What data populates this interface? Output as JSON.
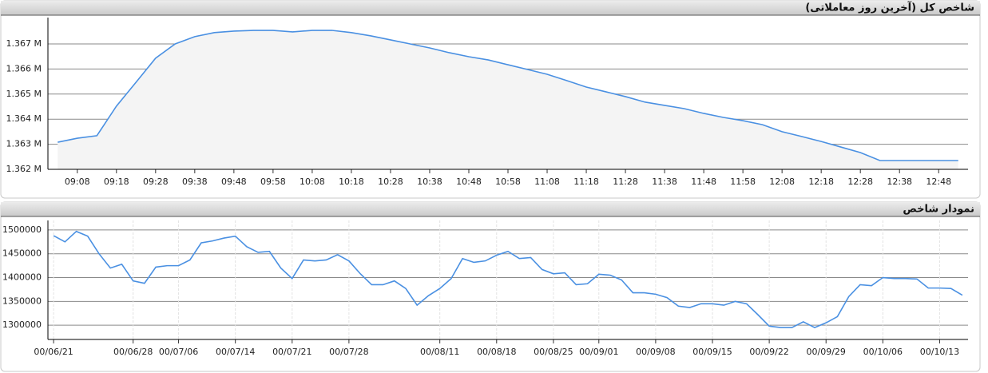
{
  "chart_data": [
    {
      "type": "line",
      "title": "شاخص کل (آخرین روز معاملاتی)",
      "color": "#4a90e2",
      "area_color": "#f4f4f4",
      "grid": true,
      "categories": [
        null,
        "09:08",
        null,
        "09:18",
        null,
        "09:28",
        null,
        "09:38",
        null,
        "09:48",
        null,
        "09:58",
        null,
        "10:08",
        null,
        "10:18",
        null,
        "10:28",
        null,
        "10:38",
        null,
        "10:48",
        null,
        "10:58",
        null,
        "11:08",
        null,
        "11:18",
        null,
        "11:28",
        null,
        "11:38",
        null,
        "11:48",
        null,
        "11:58",
        null,
        "12:08",
        null,
        "12:18",
        null,
        "12:28",
        null,
        "12:38",
        null,
        "12:48",
        null
      ],
      "values": [
        1363080,
        1363240,
        1363340,
        1364520,
        1365470,
        1366430,
        1367000,
        1367290,
        1367450,
        1367510,
        1367540,
        1367540,
        1367480,
        1367540,
        1367540,
        1367450,
        1367320,
        1367160,
        1367000,
        1366840,
        1366650,
        1366490,
        1366360,
        1366170,
        1365980,
        1365790,
        1365540,
        1365280,
        1365090,
        1364900,
        1364680,
        1364550,
        1364420,
        1364230,
        1364070,
        1363940,
        1363780,
        1363500,
        1363310,
        1363110,
        1362890,
        1362670,
        1362350,
        1362350,
        1362350,
        1362350,
        1362350
      ],
      "ylim": [
        1362000,
        1368050
      ],
      "yticks": [
        {
          "value": 1362000,
          "label": "1.362 M"
        },
        {
          "value": 1363000,
          "label": "1.363 M"
        },
        {
          "value": 1364000,
          "label": "1.364 M"
        },
        {
          "value": 1365000,
          "label": "1.365 M"
        },
        {
          "value": 1366000,
          "label": "1.366 M"
        },
        {
          "value": 1367000,
          "label": "1.367 M"
        }
      ]
    },
    {
      "type": "line",
      "title": "نمودار شاخص",
      "color": "#4a90e2",
      "grid": true,
      "categories": [
        "00/06/21",
        null,
        null,
        null,
        null,
        null,
        null,
        "00/06/28",
        null,
        null,
        null,
        "00/07/06",
        null,
        null,
        null,
        null,
        "00/07/14",
        null,
        null,
        null,
        null,
        "00/07/21",
        null,
        null,
        null,
        null,
        "00/07/28",
        null,
        null,
        null,
        null,
        null,
        null,
        null,
        "00/08/11",
        null,
        null,
        null,
        null,
        "00/08/18",
        null,
        null,
        null,
        null,
        "00/08/25",
        null,
        null,
        null,
        "00/09/01",
        null,
        null,
        null,
        null,
        "00/09/08",
        null,
        null,
        null,
        null,
        "00/09/15",
        null,
        null,
        null,
        null,
        "00/09/22",
        null,
        null,
        null,
        null,
        "00/09/29",
        null,
        null,
        null,
        null,
        "00/10/06",
        null,
        null,
        null,
        null,
        "00/10/13",
        null,
        null
      ],
      "values": [
        1488000,
        1475000,
        1497000,
        1487000,
        1450000,
        1420000,
        1428000,
        1393000,
        1388000,
        1422000,
        1425000,
        1425000,
        1437000,
        1473000,
        1477000,
        1483000,
        1487000,
        1465000,
        1453000,
        1455000,
        1420000,
        1398000,
        1437000,
        1435000,
        1437000,
        1448000,
        1435000,
        1408000,
        1385000,
        1385000,
        1393000,
        1377000,
        1342000,
        1362000,
        1377000,
        1398000,
        1440000,
        1432000,
        1435000,
        1447000,
        1455000,
        1440000,
        1442000,
        1417000,
        1408000,
        1410000,
        1385000,
        1387000,
        1407000,
        1405000,
        1395000,
        1368000,
        1368000,
        1365000,
        1358000,
        1340000,
        1337000,
        1345000,
        1345000,
        1342000,
        1350000,
        1345000,
        1322000,
        1298000,
        1295000,
        1295000,
        1307000,
        1295000,
        1305000,
        1318000,
        1360000,
        1385000,
        1383000,
        1400000,
        1398000,
        1398000,
        1397000,
        1378000,
        1378000,
        1377000,
        1363000
      ],
      "ylim": [
        1270000,
        1520000
      ],
      "yticks": [
        1300000,
        1350000,
        1400000,
        1450000,
        1500000
      ]
    }
  ]
}
